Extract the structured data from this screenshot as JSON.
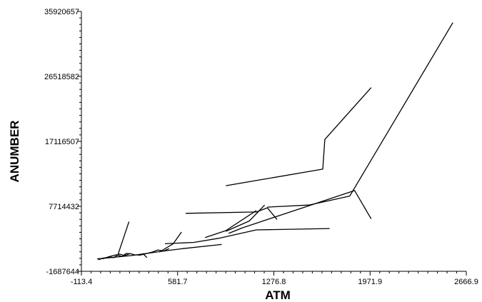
{
  "chart_data": {
    "type": "line",
    "xlabel": "ATM",
    "ylabel": "ANUMBER",
    "xlim": [
      -113.4,
      2666.9
    ],
    "ylim": [
      -1687644,
      35920657
    ],
    "x_ticks": [
      "-113.4",
      "581.7",
      "1276.8",
      "1971.9",
      "2666.9"
    ],
    "y_ticks": [
      "35920657",
      "26518582",
      "17116507",
      "7714432",
      "-1687644"
    ],
    "grid": false,
    "legend": "none",
    "line_color": "#000000",
    "series": [
      {
        "x": [
          930,
          1630,
          1645,
          1980
        ],
        "y": [
          10700000,
          13100000,
          17400000,
          24900000
        ]
      },
      {
        "x": [
          1230,
          1530,
          1825,
          2570
        ],
        "y": [
          7600000,
          7900000,
          9200000,
          34300000
        ]
      },
      {
        "x": [
          950,
          1050,
          1500,
          1860,
          1980
        ],
        "y": [
          3800000,
          4600000,
          7600000,
          10000000,
          5900000
        ]
      },
      {
        "x": [
          640,
          1150,
          1230,
          1300
        ],
        "y": [
          6700000,
          6900000,
          7500000,
          5800000
        ]
      },
      {
        "x": [
          930,
          1100,
          1210
        ],
        "y": [
          4100000,
          5600000,
          7900000
        ]
      },
      {
        "x": [
          780,
          930,
          1150
        ],
        "y": [
          3200000,
          4200000,
          7100000
        ]
      },
      {
        "x": [
          490,
          700,
          880,
          1150,
          1680
        ],
        "y": [
          2300000,
          2500000,
          3100000,
          4300000,
          4500000
        ]
      },
      {
        "x": [
          0,
          250,
          500,
          620,
          900
        ],
        "y": [
          100000,
          600000,
          1300000,
          1600000,
          2200000
        ]
      },
      {
        "x": [
          10,
          40,
          70,
          100,
          140,
          180,
          210,
          240,
          270,
          310,
          360,
          400,
          440,
          480,
          520
        ],
        "y": [
          0,
          200000,
          300000,
          500000,
          700000,
          450000,
          900000,
          850000,
          700000,
          650000,
          900000,
          1100000,
          1400000,
          1250000,
          1600000
        ]
      },
      {
        "x": [
          40,
          80,
          120,
          160,
          200,
          240
        ],
        "y": [
          100000,
          400000,
          300000,
          800000,
          600000,
          900000
        ]
      },
      {
        "x": [
          150,
          230
        ],
        "y": [
          700000,
          5500000
        ]
      },
      {
        "x": [
          450,
          550,
          610
        ],
        "y": [
          1100000,
          2300000,
          4000000
        ]
      },
      {
        "x": [
          330,
          360
        ],
        "y": [
          900000,
          300000
        ]
      }
    ]
  }
}
